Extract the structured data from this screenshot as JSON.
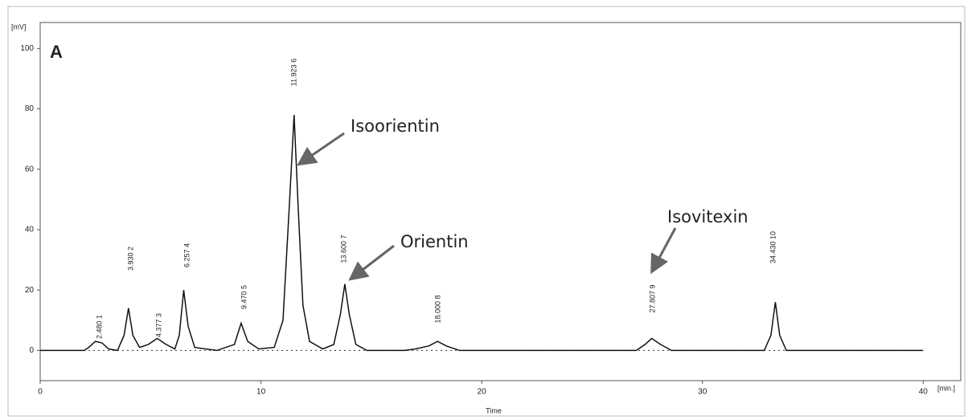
{
  "chart_data": {
    "type": "line",
    "panel_label": "A",
    "y_unit": "[mV]",
    "x_unit": "[min.]",
    "x_label": "Time",
    "annotations": [
      "Isoorientin",
      "Orientin",
      "Isovitexin"
    ],
    "peak_labels": [
      "2.480 1",
      "3.930 2",
      "4.377 3",
      "6.257 4",
      "9.470 5",
      "11.923 6",
      "13.600 7",
      "18.000 8",
      "27.807 9",
      "34.430 10"
    ],
    "series": [
      {
        "color": "#111111",
        "x": [
          0,
          2,
          2.2,
          2.5,
          2.8,
          3.1,
          3.5,
          3.8,
          4.0,
          4.2,
          4.5,
          4.9,
          5.3,
          5.7,
          6.1,
          6.3,
          6.5,
          6.7,
          7.0,
          8,
          8.8,
          9.1,
          9.4,
          9.9,
          10.6,
          11.0,
          11.3,
          11.5,
          11.7,
          11.9,
          12.2,
          12.8,
          13.3,
          13.6,
          13.8,
          14.0,
          14.3,
          14.8,
          16.5,
          17.0,
          17.6,
          18.0,
          18.4,
          19,
          27,
          27.4,
          27.7,
          28.1,
          28.6,
          32.8,
          33.1,
          33.3,
          33.5,
          33.8,
          40
        ],
        "values": [
          0,
          0,
          1,
          3,
          2.5,
          0.5,
          0,
          5,
          14,
          5,
          1,
          2,
          4,
          2,
          0.5,
          5,
          20,
          8,
          1,
          0,
          2,
          9,
          3,
          0.5,
          1,
          10,
          50,
          78,
          45,
          15,
          3,
          0.5,
          2,
          12,
          22,
          12,
          2,
          0,
          0,
          0.5,
          1.5,
          3,
          1.5,
          0,
          0,
          2,
          4,
          2,
          0,
          0,
          5,
          16,
          5,
          0,
          0
        ]
      }
    ],
    "xlim": [
      0,
      41.7
    ],
    "ylim": [
      -10,
      108.6
    ],
    "xticks": [
      0,
      10,
      20,
      30,
      40
    ],
    "yticks": [
      0,
      20,
      40,
      60,
      80,
      100
    ]
  }
}
